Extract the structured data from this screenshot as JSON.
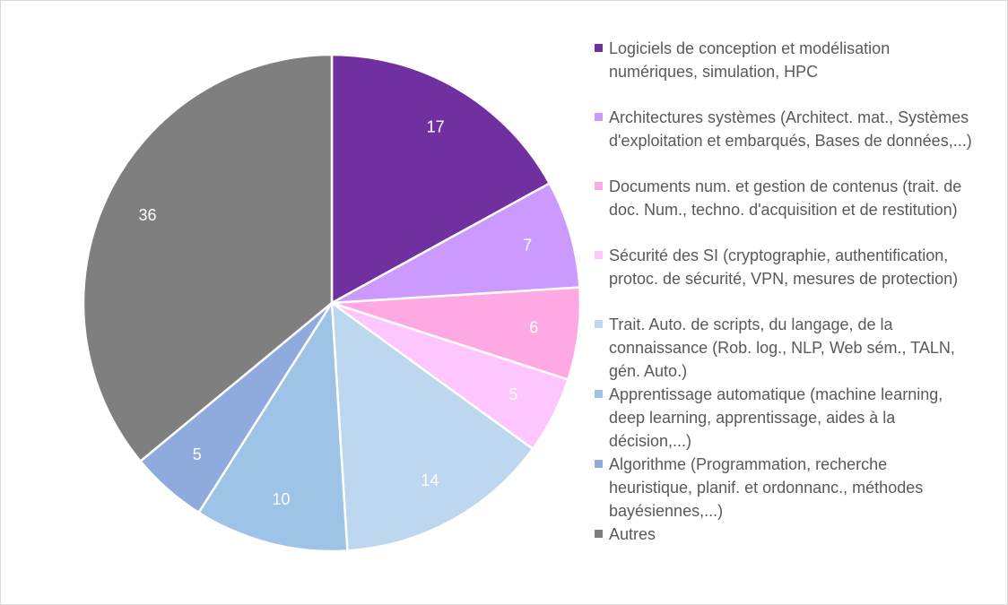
{
  "chart_data": {
    "type": "pie",
    "title": "",
    "start_angle_deg": 0,
    "direction": "clockwise",
    "legend_position": "right",
    "slices": [
      {
        "label": "Logiciels de conception et modélisation\nnumériques, simulation, HPC",
        "value": 17,
        "color": "#7030a0"
      },
      {
        "label": "Architectures systèmes (Architect. mat., Systèmes\nd'exploitation et embarqués, Bases de données,...)",
        "value": 7,
        "color": "#cc99ff"
      },
      {
        "label": "Documents num. et gestion de contenus (trait. de\ndoc. Num., techno. d'acquisition et de restitution)",
        "value": 6,
        "color": "#ffa9e4"
      },
      {
        "label": "Sécurité des SI (cryptographie, authentification,\nprotoc. de sécurité, VPN, mesures de protection)",
        "value": 5,
        "color": "#ffc5ff"
      },
      {
        "label": "Trait. Auto. de scripts, du langage, de la\nconnaissance (Rob. log., NLP, Web sém., TALN,\ngén. Auto.)",
        "value": 14,
        "color": "#bdd7ee"
      },
      {
        "label": "Apprentissage automatique (machine learning,\ndeep learning, apprentissage, aides à la\ndécision,...)",
        "value": 10,
        "color": "#9dc3e6"
      },
      {
        "label": "Algorithme (Programmation, recherche\nheuristique, planif. et ordonnanc., méthodes\nbayésiennes,...)",
        "value": 5,
        "color": "#8faadc"
      },
      {
        "label": "Autres",
        "value": 36,
        "color": "#7f7f7f"
      }
    ]
  }
}
